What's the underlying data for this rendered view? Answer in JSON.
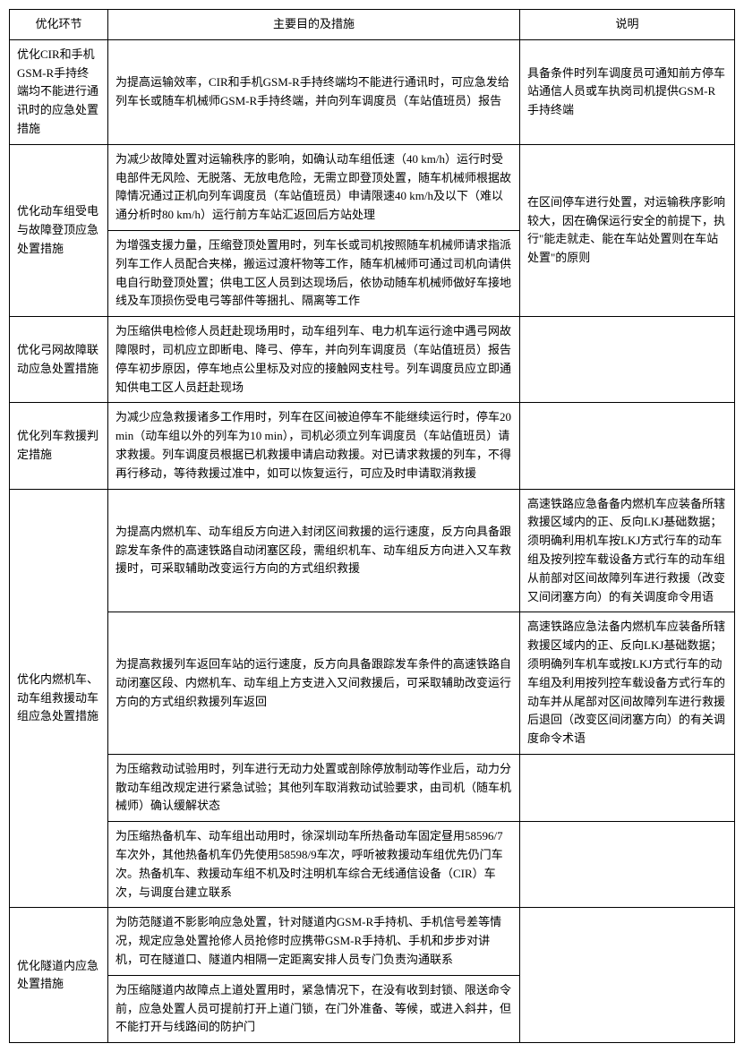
{
  "headers": {
    "c1": "优化环节",
    "c2": "主要目的及措施",
    "c3": "说明"
  },
  "r1": {
    "c1": "优化CIR和手机GSM-R手持终端均不能进行通讯时的应急处置措施",
    "c2": "为提高运输效率，CIR和手机GSM-R手持终端均不能进行通讯时，可应急发给列车长或随车机械师GSM-R手持终端，并向列车调度员（车站值班员）报告",
    "c3": "具备条件时列车调度员可通知前方停车站通信人员或车执岗司机提供GSM-R手持终端"
  },
  "r2": {
    "c1": "优化动车组受电与故障登顶应急处置措施",
    "c2_1": "为减少故障处置对运输秩序的影响，如确认动车组低速（40 km/h）运行时受电部件无风险、无脱落、无放电危险，无需立即登顶处置，随车机械师根据故障情况通过正机向列车调度员（车站值班员）申请限速40 km/h及以下（难以通分析时80 km/h）运行前方车站汇返回后方站处理",
    "c2_2": "为增强支援力量，压缩登顶处置用时，列车长或司机按照随车机械师请求指派列车工作人员配合夹梯，搬运过渡杆物等工作，随车机械师可通过司机向请供电自行助登顶处置；供电工区人员到达现场后，依协动随车机械师做好车接地线及车顶损伤受电弓等部件等捆扎、隔离等工作",
    "c3": "在区间停车进行处置，对运输秩序影响较大，因在确保运行安全的前提下，执行\"能走就走、能在车站处置则在车站处置\"的原则"
  },
  "r3": {
    "c1": "优化弓网故障联动应急处置措施",
    "c2": "为压缩供电检修人员赶赴现场用时，动车组列车、电力机车运行途中遇弓网故障限时，司机应立即断电、降弓、停车，并向列车调度员（车站值班员）报告停车初步原因，停车地点公里标及对应的接触网支柱号。列车调度员应立即通知供电工区人员赶赴现场",
    "c3": ""
  },
  "r4": {
    "c1": "优化列车救援判定措施",
    "c2": "为减少应急救援诸多工作用时，列车在区间被迫停车不能继续运行时，停车20 min（动车组以外的列车为10 min），司机必须立列车调度员（车站值班员）请求救援。列车调度员根据已机救援申请启动救援。对已请求救援的列车，不得再行移动，等待救援过准中，如可以恢复运行，可应及时申请取消救援",
    "c3": ""
  },
  "r5": {
    "c1": "优化内燃机车、动车组救援动车组应急处置措施",
    "c2_1": "为提高内燃机车、动车组反方向进入封闭区间救援的运行速度，反方向具备跟踪发车条件的高速铁路自动闭塞区段，需组织机车、动车组反方向进入又车救援时，可采取辅助改变运行方向的方式组织救援",
    "c3_1": "高速铁路应急备备内燃机车应装备所辖救援区域内的正、反向LKJ基础数据；须明确利用机车按LKJ方式行车的动车组及按列控车载设备方式行车的动车组从前部对区间故障列车进行救援（改变又间闭塞方向）的有关调度命令用语",
    "c2_2": "为提高救援列车返回车站的运行速度，反方向具备跟踪发车条件的高速铁路自动闭塞区段、内燃机车、动车组上方支进入又间救援后，可采取辅助改变运行方向的方式组织救援列车返回",
    "c3_2": "高速铁路应急法备内燃机车应装备所辖救援区域内的正、反向LKJ基础数据；须明确列车机车或按LKJ方式行车的动车组及利用按列控车载设备方式行车的动车并从尾部对区间故障列车进行救援后退回（改变区间闭塞方向）的有关调度命令术语",
    "c2_3": "为压缩救动试验用时，列车进行无动力处置或剖除停放制动等作业后，动力分散动车组改规定进行紧急试验；其他列车取消救动试验要求，由司机（随车机械师）确认缓解状态",
    "c3_3": "",
    "c2_4": "为压缩热备机车、动车组出动用时，徐深圳动车所热备动车固定昼用58596/7车次外，其他热备机车仍先使用58598/9车次，呼听被救援动车组优先仍门车次。热备机车、救援动车组不机及时注明机车综合无线通信设备（CIR）车次，与调度台建立联系",
    "c3_4": ""
  },
  "r6": {
    "c1": "优化隧道内应急处置措施",
    "c2_1": "为防范隧道不影影响应急处置，针对隧道内GSM-R手持机、手机信号差等情况，规定应急处置抢修人员抢修时应携带GSM-R手持机、手机和步步对讲机，可在隧道口、隧道内相隔一定距离安排人员专门负责沟通联系",
    "c2_2": "为压缩隧道内故障点上道处置用时，紧急情况下，在没有收到封锁、限送命令前，应急处置人员可提前打开上道门锁，在门外准备、等候，或进入斜井，但不能打开与线路间的防护门",
    "c3": ""
  }
}
